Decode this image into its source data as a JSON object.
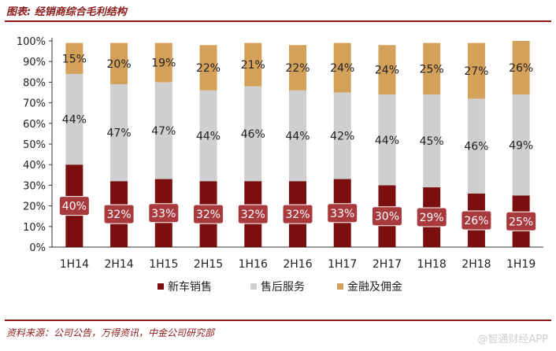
{
  "title": "图表: 经销商综合毛利结构",
  "source": "资料来源：公司公告，万得资讯，中金公司研究部",
  "watermark": "@智通财经APP",
  "chart_data": {
    "type": "bar",
    "stacked": true,
    "categories": [
      "1H14",
      "2H14",
      "1H15",
      "2H15",
      "1H16",
      "2H16",
      "1H17",
      "2H17",
      "1H18",
      "2H18",
      "1H19"
    ],
    "series": [
      {
        "name": "新车销售",
        "color": "#7b0f0f",
        "values": [
          40,
          32,
          33,
          32,
          32,
          32,
          33,
          30,
          29,
          26,
          25
        ]
      },
      {
        "name": "售后服务",
        "color": "#cfcfcf",
        "values": [
          44,
          47,
          47,
          44,
          46,
          44,
          42,
          44,
          45,
          46,
          49
        ]
      },
      {
        "name": "金融及佣金",
        "color": "#d4a15a",
        "values": [
          15,
          20,
          19,
          22,
          21,
          22,
          24,
          24,
          25,
          27,
          26
        ]
      }
    ],
    "yticks": [
      "0%",
      "10%",
      "20%",
      "30%",
      "40%",
      "50%",
      "60%",
      "70%",
      "80%",
      "90%",
      "100%"
    ],
    "ylim": [
      0,
      100
    ],
    "legend_position": "bottom"
  }
}
